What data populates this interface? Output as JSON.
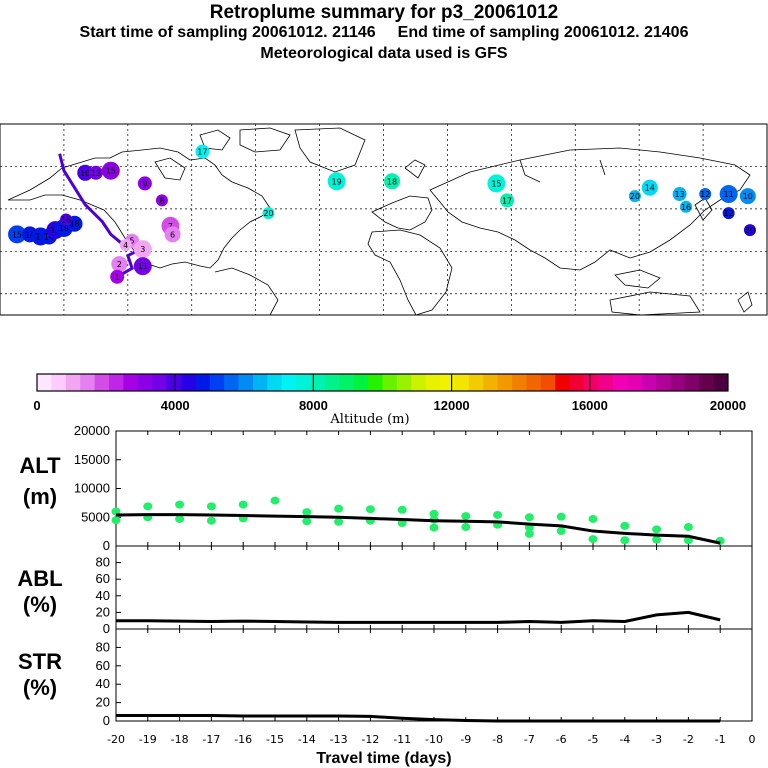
{
  "title": "Retroplume summary for p3_20061012",
  "subtitle_start": "Start time of sampling 20061012. 21146",
  "subtitle_end": "End time of sampling 20061012. 21406",
  "subtitle_met": "Meteorological data used is GFS",
  "colorbar": {
    "title": "Altitude (m)",
    "ticks": [
      "0",
      "4000",
      "8000",
      "12000",
      "16000",
      "20000"
    ],
    "colors": [
      "#ffe6ff",
      "#ffccff",
      "#f2a6f2",
      "#e680f2",
      "#d24de6",
      "#bf26e6",
      "#a600e6",
      "#8c00e6",
      "#7300e6",
      "#4d00e6",
      "#2600e6",
      "#0019e6",
      "#0040f2",
      "#0066f2",
      "#008cf2",
      "#00b3f2",
      "#00d9f2",
      "#00f2f2",
      "#00f2d9",
      "#00f2b3",
      "#00f28c",
      "#00f266",
      "#00f240",
      "#26f200",
      "#66f200",
      "#99f200",
      "#ccf200",
      "#e6f200",
      "#f2f200",
      "#f2e600",
      "#f2cc00",
      "#f2b300",
      "#f29900",
      "#f28000",
      "#f26600",
      "#f24d00",
      "#f20000",
      "#f20033",
      "#f20066",
      "#f2008c",
      "#f200b3",
      "#e600b3",
      "#cc00b3",
      "#b30099",
      "#99007f",
      "#7f0066",
      "#66004d",
      "#4d0040"
    ]
  },
  "map": {
    "labels": [
      {
        "n": "15",
        "lon": -172,
        "lat": 28,
        "alt": 5000
      },
      {
        "n": "14",
        "lon": -166,
        "lat": 28,
        "alt": 4900
      },
      {
        "n": "15",
        "lon": -161,
        "lat": 27,
        "alt": 4900
      },
      {
        "n": "14",
        "lon": -157,
        "lat": 27,
        "alt": 4800
      },
      {
        "n": "19",
        "lon": -154,
        "lat": 30,
        "alt": 4300
      },
      {
        "n": "19",
        "lon": -150,
        "lat": 31,
        "alt": 4600
      },
      {
        "n": "18",
        "lon": -145,
        "lat": 33,
        "alt": 4700
      },
      {
        "n": "16",
        "lon": -149,
        "lat": 35,
        "alt": 4100
      },
      {
        "n": "10",
        "lon": -140,
        "lat": 57,
        "alt": 3800
      },
      {
        "n": "13",
        "lon": -135,
        "lat": 57,
        "alt": 3500
      },
      {
        "n": "15",
        "lon": -128,
        "lat": 58,
        "alt": 3300
      },
      {
        "n": "9",
        "lon": -112,
        "lat": 52,
        "alt": 3200
      },
      {
        "n": "8",
        "lon": -104,
        "lat": 44,
        "alt": 3100
      },
      {
        "n": "7",
        "lon": -100,
        "lat": 32,
        "alt": 1800
      },
      {
        "n": "6",
        "lon": -99,
        "lat": 28,
        "alt": 1500
      },
      {
        "n": "5",
        "lon": -118,
        "lat": 25,
        "alt": 1400
      },
      {
        "n": "4",
        "lon": -121,
        "lat": 23,
        "alt": 1200
      },
      {
        "n": "3",
        "lon": -113,
        "lat": 21,
        "alt": 1000
      },
      {
        "n": "11",
        "lon": -113,
        "lat": 13,
        "alt": 3400
      },
      {
        "n": "2",
        "lon": -124,
        "lat": 14,
        "alt": 1600
      },
      {
        "n": "1",
        "lon": -125,
        "lat": 8,
        "alt": 2500
      },
      {
        "n": "17",
        "lon": -85,
        "lat": 67,
        "alt": 7200
      },
      {
        "n": "20",
        "lon": -54,
        "lat": 38,
        "alt": 7900
      },
      {
        "n": "19",
        "lon": -22,
        "lat": 53,
        "alt": 7700
      },
      {
        "n": "18",
        "lon": 4,
        "lat": 53,
        "alt": 8200
      },
      {
        "n": "15",
        "lon": 53,
        "lat": 52,
        "alt": 7800
      },
      {
        "n": "17",
        "lon": 58,
        "lat": 44,
        "alt": 8300
      },
      {
        "n": "20",
        "lon": 118,
        "lat": 46,
        "alt": 6500
      },
      {
        "n": "14",
        "lon": 125,
        "lat": 50,
        "alt": 6700
      },
      {
        "n": "13",
        "lon": 139,
        "lat": 47,
        "alt": 6400
      },
      {
        "n": "16",
        "lon": 142,
        "lat": 41,
        "alt": 6300
      },
      {
        "n": "12",
        "lon": 151,
        "lat": 47,
        "alt": 5700
      },
      {
        "n": "11",
        "lon": 162,
        "lat": 47,
        "alt": 5800
      },
      {
        "n": "10",
        "lon": 171,
        "lat": 46,
        "alt": 6200
      },
      {
        "n": "12",
        "lon": 162,
        "lat": 38,
        "alt": 4700
      },
      {
        "n": "20",
        "lon": 172,
        "lat": 30,
        "alt": 4500
      }
    ]
  },
  "chart_data": [
    {
      "type": "scatter",
      "panel": "ALT",
      "ylabel": "ALT (m)",
      "yticks": [
        "20000",
        "15000",
        "10000",
        "5000",
        "0"
      ],
      "ylim": [
        0,
        20000
      ],
      "xlim": [
        -20,
        0
      ],
      "median_line": {
        "x": [
          -20,
          -19,
          -18,
          -17,
          -16,
          -15,
          -14,
          -13,
          -12,
          -11,
          -10,
          -9,
          -8,
          -7,
          -6,
          -5,
          -4,
          -3,
          -2,
          -1
        ],
        "y": [
          5400,
          5450,
          5450,
          5400,
          5300,
          5200,
          5100,
          5000,
          4800,
          4600,
          4400,
          4300,
          4200,
          3800,
          3500,
          2600,
          2200,
          1900,
          1700,
          500
        ]
      },
      "points": {
        "x": [
          -20,
          -20,
          -19,
          -19,
          -18,
          -18,
          -17,
          -17,
          -16,
          -16,
          -15,
          -14,
          -14,
          -13,
          -13,
          -12,
          -12,
          -11,
          -11,
          -10,
          -10,
          -10,
          -9,
          -9,
          -8,
          -8,
          -7,
          -7,
          -7,
          -6,
          -6,
          -5,
          -5,
          -4,
          -4,
          -3,
          -3,
          -2,
          -2,
          -1
        ],
        "y": [
          6000,
          4500,
          6900,
          5000,
          7200,
          4700,
          6900,
          4400,
          7200,
          4800,
          7900,
          5900,
          4300,
          6500,
          4200,
          6400,
          4400,
          6300,
          4000,
          5600,
          4600,
          3200,
          5200,
          3300,
          5400,
          3700,
          5000,
          3200,
          2100,
          5100,
          2600,
          4700,
          1200,
          3500,
          1000,
          2900,
          1100,
          3300,
          1000,
          900
        ]
      }
    },
    {
      "type": "line",
      "panel": "ABL",
      "ylabel": "ABL (%)",
      "yticks": [
        "80",
        "60",
        "40",
        "20",
        "0"
      ],
      "ylim": [
        0,
        100
      ],
      "xlim": [
        -20,
        0
      ],
      "x": [
        -20,
        -19,
        -18,
        -17,
        -16,
        -15,
        -14,
        -13,
        -12,
        -11,
        -10,
        -9,
        -8,
        -7,
        -6,
        -5,
        -4,
        -3,
        -2,
        -1
      ],
      "y": [
        10,
        10,
        9.5,
        9,
        9.5,
        9,
        8.5,
        8,
        8,
        8,
        8,
        8,
        8,
        9,
        8,
        10,
        9,
        17,
        20,
        11
      ]
    },
    {
      "type": "line",
      "panel": "STR",
      "ylabel": "STR (%)",
      "yticks": [
        "80",
        "60",
        "40",
        "20",
        "0"
      ],
      "ylim": [
        0,
        100
      ],
      "xlim": [
        -20,
        0
      ],
      "x": [
        -20,
        -19,
        -18,
        -17,
        -16,
        -15,
        -14,
        -13,
        -12,
        -11,
        -10,
        -9,
        -8,
        -7,
        -6,
        -5,
        -4,
        -3,
        -2,
        -1
      ],
      "y": [
        6,
        6,
        6,
        6,
        5.5,
        5.5,
        5.5,
        5.5,
        5,
        3,
        1.5,
        0.5,
        0,
        0,
        0,
        0,
        0,
        0,
        0,
        0
      ],
      "xticks": [
        "-20",
        "-19",
        "-18",
        "-17",
        "-16",
        "-15",
        "-14",
        "-13",
        "-12",
        "-11",
        "-10",
        "-9",
        "-8",
        "-7",
        "-6",
        "-5",
        "-4",
        "-3",
        "-2",
        "-1",
        "0"
      ],
      "xlabel": "Travel time (days)"
    }
  ]
}
